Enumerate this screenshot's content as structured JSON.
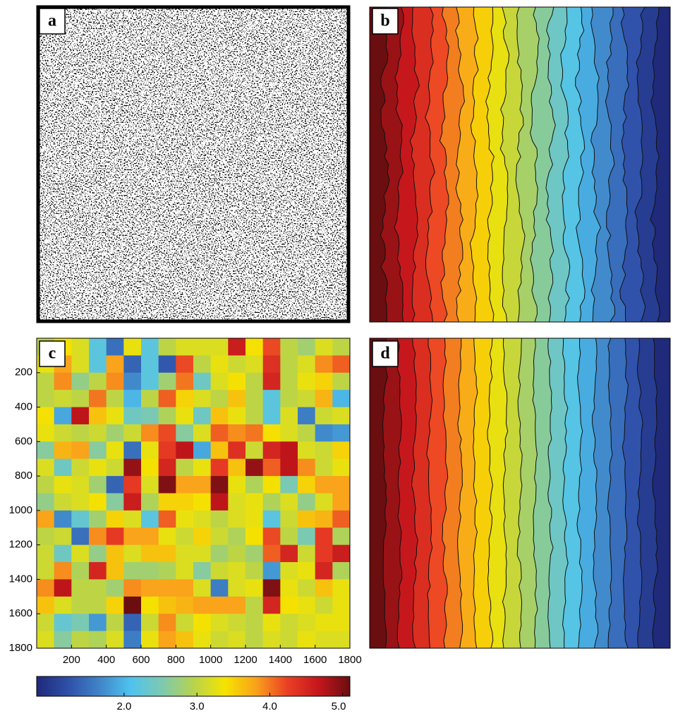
{
  "panel_labels": [
    "a",
    "b",
    "c",
    "d"
  ],
  "chart_data": {
    "type": "heatmap",
    "xlim": [
      0,
      1800
    ],
    "ylim": [
      0,
      1800
    ],
    "xticks": [
      200,
      400,
      600,
      800,
      1000,
      1200,
      1400,
      1600,
      1800
    ],
    "yticks": [
      200,
      400,
      600,
      800,
      1000,
      1200,
      1400,
      1600,
      1800
    ],
    "zlim": [
      0.8,
      5.1
    ],
    "cbar_ticks": [
      {
        "value": 2,
        "label": "2.0"
      },
      {
        "value": 3,
        "label": "3.0"
      },
      {
        "value": 4,
        "label": "4.0"
      },
      {
        "value": 5,
        "label": "5.0"
      }
    ],
    "colors": [
      "#1f2a7a",
      "#2f4fa8",
      "#3f84c8",
      "#4fc3ee",
      "#7cc9b0",
      "#b6d34e",
      "#f5e400",
      "#f9a21b",
      "#ea3f25",
      "#c4161c",
      "#6a0e10"
    ],
    "values": [
      [
        3.0,
        3.4,
        3.2,
        2.2,
        1.5,
        3.3,
        2.2,
        3.0,
        3.2,
        3.2,
        3.2,
        4.6,
        3.4,
        4.2,
        3.0,
        2.8,
        3.2,
        3.0
      ],
      [
        3.3,
        3.8,
        3.2,
        2.2,
        3.8,
        1.4,
        2.2,
        1.3,
        4.2,
        3.0,
        3.3,
        3.1,
        3.2,
        4.4,
        3.0,
        3.2,
        3.9,
        4.1
      ],
      [
        3.0,
        3.9,
        2.7,
        3.0,
        3.9,
        1.7,
        2.2,
        2.8,
        4.0,
        2.4,
        3.2,
        3.4,
        3.0,
        4.5,
        3.0,
        3.3,
        3.5,
        3.0
      ],
      [
        3.0,
        3.1,
        3.0,
        4.0,
        3.0,
        2.0,
        3.0,
        4.1,
        3.5,
        3.2,
        3.0,
        3.6,
        3.0,
        2.2,
        3.0,
        3.1,
        3.7,
        2.0
      ],
      [
        3.4,
        1.9,
        4.7,
        3.6,
        3.3,
        2.4,
        2.5,
        2.9,
        3.3,
        2.4,
        3.6,
        3.3,
        3.0,
        2.2,
        3.2,
        1.6,
        3.1,
        3.2
      ],
      [
        3.3,
        3.1,
        3.0,
        3.1,
        2.8,
        3.1,
        3.9,
        4.2,
        2.6,
        3.2,
        4.1,
        3.9,
        4.0,
        3.4,
        3.2,
        3.0,
        1.7,
        1.8
      ],
      [
        2.6,
        3.7,
        3.8,
        2.6,
        3.3,
        1.5,
        3.3,
        4.3,
        4.7,
        1.9,
        3.6,
        4.4,
        3.1,
        4.5,
        4.7,
        3.2,
        3.1,
        3.5
      ],
      [
        3.2,
        2.4,
        3.1,
        3.3,
        3.1,
        4.9,
        3.4,
        4.5,
        3.0,
        3.3,
        4.3,
        3.6,
        4.9,
        4.1,
        4.7,
        3.9,
        3.1,
        3.3
      ],
      [
        3.0,
        3.3,
        3.2,
        2.8,
        1.4,
        4.3,
        3.2,
        5.0,
        3.8,
        3.8,
        5.0,
        3.3,
        2.9,
        3.4,
        2.5,
        3.5,
        3.8,
        3.8
      ],
      [
        2.7,
        3.1,
        3.2,
        3.4,
        2.6,
        4.6,
        2.9,
        3.5,
        3.5,
        3.4,
        4.7,
        3.2,
        3.3,
        2.9,
        3.2,
        2.7,
        3.2,
        3.8
      ],
      [
        3.8,
        1.7,
        2.3,
        2.8,
        3.5,
        3.2,
        2.2,
        4.1,
        3.3,
        3.2,
        3.0,
        3.2,
        3.3,
        2.2,
        3.1,
        3.6,
        3.7,
        4.1
      ],
      [
        3.0,
        3.1,
        1.5,
        3.9,
        4.3,
        3.8,
        3.8,
        3.3,
        3.1,
        3.5,
        3.1,
        2.9,
        3.4,
        4.2,
        3.0,
        2.5,
        4.3,
        2.9
      ],
      [
        3.1,
        2.4,
        3.2,
        2.7,
        3.6,
        3.2,
        3.6,
        3.6,
        3.2,
        3.2,
        2.8,
        3.0,
        2.8,
        4.1,
        4.5,
        3.1,
        4.3,
        4.6
      ],
      [
        3.1,
        3.9,
        2.9,
        4.5,
        3.6,
        2.8,
        2.8,
        2.9,
        3.2,
        2.6,
        3.1,
        3.2,
        3.0,
        1.8,
        3.2,
        3.3,
        4.5,
        2.9
      ],
      [
        3.9,
        4.7,
        3.0,
        3.0,
        2.8,
        3.9,
        3.8,
        3.8,
        3.8,
        3.2,
        1.6,
        3.2,
        3.3,
        5.0,
        3.3,
        3.1,
        3.6,
        3.3
      ],
      [
        3.6,
        3.2,
        3.0,
        3.0,
        3.5,
        5.1,
        3.4,
        3.6,
        3.7,
        3.8,
        3.8,
        3.8,
        3.0,
        4.5,
        3.4,
        3.3,
        3.1,
        3.3
      ],
      [
        3.1,
        2.3,
        2.5,
        1.8,
        3.0,
        1.4,
        3.1,
        3.9,
        3.1,
        3.4,
        3.2,
        3.1,
        3.0,
        3.3,
        3.1,
        3.2,
        3.3,
        3.3
      ],
      [
        3.2,
        2.6,
        3.0,
        2.9,
        3.2,
        1.6,
        3.3,
        3.8,
        3.6,
        3.3,
        3.1,
        3.2,
        3.0,
        3.2,
        3.1,
        3.3,
        3.2,
        3.2
      ]
    ]
  }
}
